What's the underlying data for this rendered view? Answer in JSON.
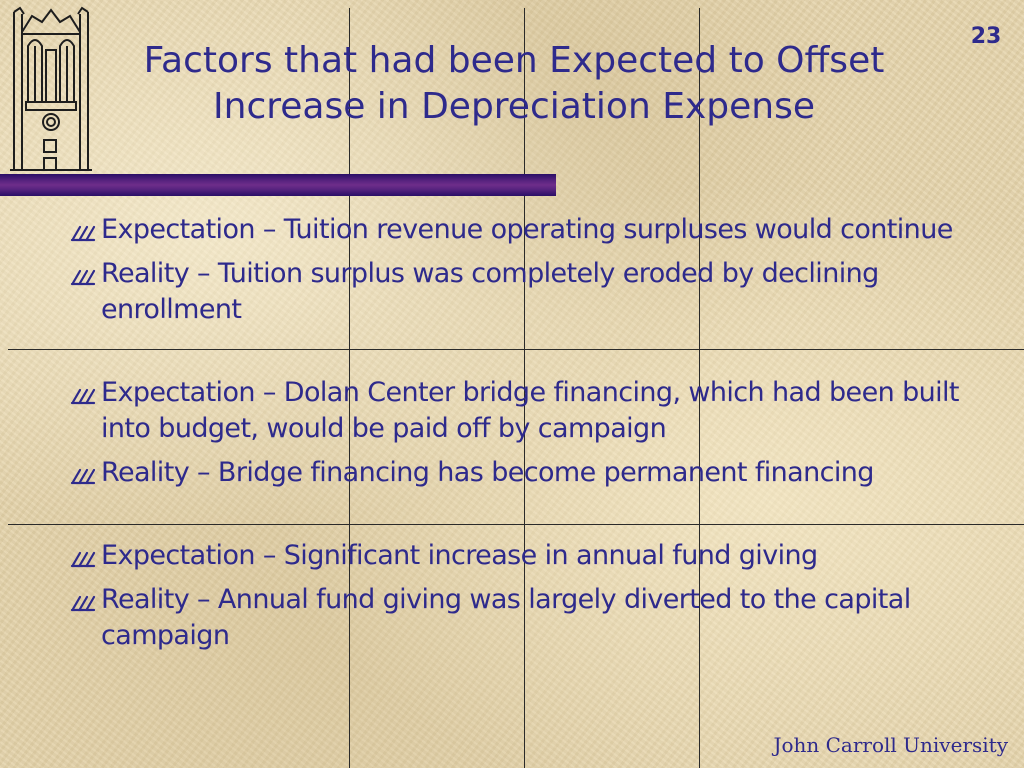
{
  "slide": {
    "number": "23",
    "title_line1": "Factors that had been Expected to Offset",
    "title_line2": "Increase in Depreciation Expense",
    "bullets": [
      {
        "text": " Expectation – Tuition revenue operating surpluses would continue"
      },
      {
        "text": "  Reality – Tuition surplus was completely eroded by declining enrollment"
      },
      {
        "text": " Expectation – Dolan Center bridge financing, which had been built into budget, would be paid off by campaign"
      },
      {
        "text": " Reality – Bridge financing has become permanent financing"
      },
      {
        "text": " Expectation – Significant increase in annual fund giving"
      },
      {
        "text": " Reality – Annual fund giving was largely diverted to the capital campaign"
      }
    ],
    "bullet_icon": "pencils-icon",
    "footer": "John Carroll University"
  },
  "colors": {
    "text": "#2e2a8c",
    "title_bar": "#57237f",
    "background": "#e6d5ad"
  }
}
